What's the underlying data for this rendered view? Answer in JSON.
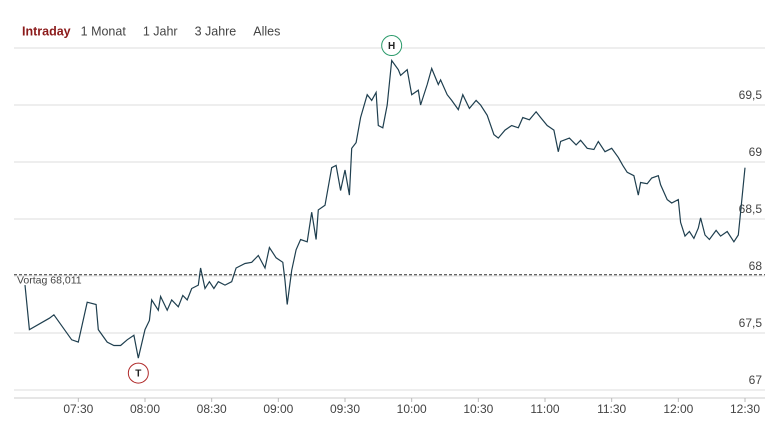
{
  "tabs": {
    "items": [
      "Intraday",
      "1 Monat",
      "1 Jahr",
      "3 Jahre",
      "Alles"
    ],
    "active": 0
  },
  "chart_data": {
    "type": "line",
    "color": "#1f3f4f",
    "x": [
      426,
      428,
      437,
      439,
      447,
      450,
      454,
      458,
      459,
      463,
      466,
      469,
      472,
      475,
      477,
      480,
      482,
      483,
      486,
      487,
      490,
      492,
      495,
      497,
      499,
      501,
      504,
      505,
      507,
      509,
      511,
      513,
      516,
      519,
      521,
      525,
      528,
      531,
      534,
      536,
      539,
      542,
      543,
      544,
      546,
      548,
      550,
      553,
      555,
      557,
      558,
      561,
      564,
      566,
      568,
      570,
      572,
      573,
      575,
      577,
      580,
      582,
      584,
      585,
      587,
      589,
      591,
      594,
      595,
      598,
      600,
      603,
      604,
      607,
      609,
      612,
      613,
      616,
      618,
      621,
      623,
      626,
      629,
      631,
      634,
      637,
      639,
      642,
      645,
      648,
      650,
      653,
      656,
      658,
      661,
      664,
      666,
      667,
      671,
      674,
      676,
      679,
      682,
      684,
      687,
      690,
      693,
      695,
      697,
      700,
      702,
      703,
      706,
      708,
      711,
      712,
      715,
      717,
      720,
      721,
      723,
      725,
      727,
      729,
      730,
      732,
      734,
      737,
      739,
      742,
      745,
      747,
      748,
      750
    ],
    "values": [
      67.92,
      67.53,
      67.63,
      67.66,
      67.44,
      67.42,
      67.77,
      67.75,
      67.53,
      67.42,
      67.39,
      67.39,
      67.44,
      67.48,
      67.28,
      67.53,
      67.61,
      67.79,
      67.7,
      67.82,
      67.7,
      67.79,
      67.73,
      67.83,
      67.79,
      67.89,
      67.92,
      68.07,
      67.89,
      67.95,
      67.89,
      67.95,
      67.92,
      67.95,
      68.07,
      68.11,
      68.12,
      68.18,
      68.07,
      68.25,
      68.16,
      68.12,
      67.96,
      67.75,
      68.05,
      68.23,
      68.32,
      68.3,
      68.56,
      68.32,
      68.58,
      68.62,
      68.95,
      68.97,
      68.75,
      68.93,
      68.71,
      69.12,
      69.17,
      69.39,
      69.59,
      69.54,
      69.61,
      69.32,
      69.3,
      69.5,
      69.89,
      69.81,
      69.76,
      69.81,
      69.59,
      69.63,
      69.5,
      69.68,
      69.82,
      69.68,
      69.72,
      69.59,
      69.54,
      69.46,
      69.59,
      69.47,
      69.54,
      69.5,
      69.41,
      69.24,
      69.21,
      69.28,
      69.32,
      69.3,
      69.39,
      69.37,
      69.44,
      69.39,
      69.32,
      69.28,
      69.09,
      69.18,
      69.21,
      69.15,
      69.19,
      69.12,
      69.11,
      69.18,
      69.09,
      69.12,
      69.04,
      68.97,
      68.91,
      68.88,
      68.71,
      68.82,
      68.81,
      68.86,
      68.88,
      68.8,
      68.67,
      68.64,
      68.67,
      68.47,
      68.35,
      68.39,
      68.33,
      68.42,
      68.51,
      68.36,
      68.32,
      68.4,
      68.35,
      68.39,
      68.3,
      68.36,
      68.56,
      68.95
    ],
    "xlim": [
      426,
      750
    ],
    "ylim": [
      67,
      70
    ],
    "xticks": [
      {
        "value": 450,
        "label": "07:30"
      },
      {
        "value": 480,
        "label": "08:00"
      },
      {
        "value": 510,
        "label": "08:30"
      },
      {
        "value": 540,
        "label": "09:00"
      },
      {
        "value": 570,
        "label": "09:30"
      },
      {
        "value": 600,
        "label": "10:00"
      },
      {
        "value": 630,
        "label": "10:30"
      },
      {
        "value": 660,
        "label": "11:00"
      },
      {
        "value": 690,
        "label": "11:30"
      },
      {
        "value": 720,
        "label": "12:00"
      },
      {
        "value": 750,
        "label": "12:30"
      }
    ],
    "yticks": [
      67,
      {
        "value": 67.5,
        "label": "67,5"
      },
      68,
      {
        "value": 68.5,
        "label": "68,5"
      },
      69,
      {
        "value": 69.5,
        "label": "69,5"
      }
    ],
    "grid": true,
    "reference": {
      "value": 68.011,
      "label": "Vortag 68,011"
    },
    "annotations": [
      {
        "text": "H",
        "x": 591,
        "y": 69.89,
        "side": "above",
        "color": "#2a9a6a"
      },
      {
        "text": "T",
        "x": 477,
        "y": 67.28,
        "side": "below",
        "color": "#b02a2a"
      }
    ]
  }
}
